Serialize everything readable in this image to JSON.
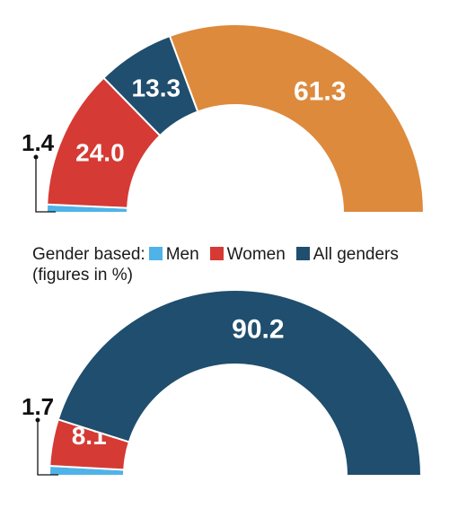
{
  "colors": {
    "men": "#4fb3e8",
    "women": "#d53a34",
    "all_genders": "#1f4e6e",
    "other": "#dd8a3d"
  },
  "legend": {
    "prefix": "Gender based:",
    "subtitle": "(figures in %)",
    "items": [
      {
        "label": "Men",
        "color": "#4fb3e8"
      },
      {
        "label": "Women",
        "color": "#d53a34"
      },
      {
        "label": "All genders",
        "color": "#1f4e6e"
      }
    ]
  },
  "chart_data": [
    {
      "type": "pie",
      "subtype": "half-donut",
      "slices": [
        {
          "name": "Men",
          "label": "1.4",
          "value": 1.4,
          "color": "#4fb3e8"
        },
        {
          "name": "Women",
          "label": "24.0",
          "value": 24.0,
          "color": "#d53a34"
        },
        {
          "name": "All genders",
          "label": "13.3",
          "value": 13.3,
          "color": "#1f4e6e"
        },
        {
          "name": "",
          "label": "61.3",
          "value": 61.3,
          "color": "#dd8a3d"
        }
      ]
    },
    {
      "type": "pie",
      "subtype": "half-donut",
      "slices": [
        {
          "name": "Men",
          "label": "1.7",
          "value": 1.7,
          "color": "#4fb3e8"
        },
        {
          "name": "Women",
          "label": "8.1",
          "value": 8.1,
          "color": "#d53a34"
        },
        {
          "name": "All genders",
          "label": "90.2",
          "value": 90.2,
          "color": "#1f4e6e"
        }
      ]
    }
  ]
}
